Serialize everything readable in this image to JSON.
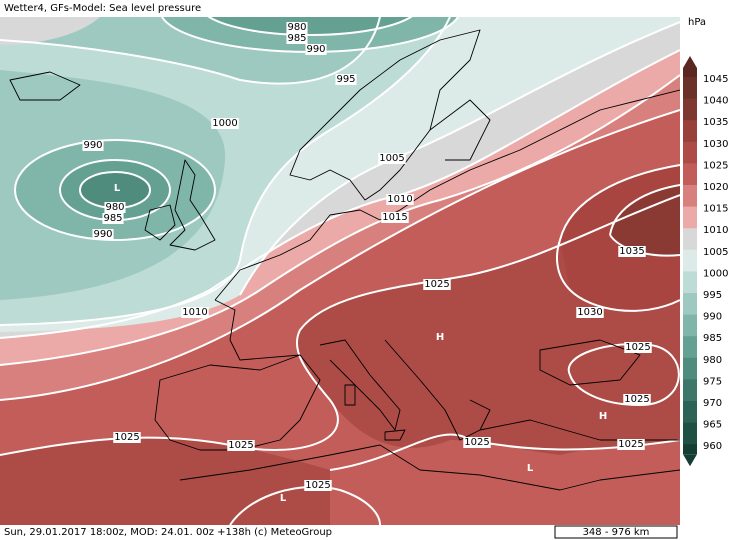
{
  "header": {
    "title": "Wetter4, GFs-Model: Sea level pressure"
  },
  "footer": {
    "caption": "Sun, 29.01.2017 18:00z, MOD: 24.01. 00z +138h (c) MeteoGroup",
    "scale": "348 - 976 km"
  },
  "legend": {
    "unit": "hPa",
    "levels": [
      "1045",
      "1040",
      "1035",
      "1030",
      "1025",
      "1020",
      "1015",
      "1010",
      "1005",
      "1000",
      "995",
      "990",
      "985",
      "980",
      "975",
      "970",
      "965",
      "960"
    ]
  },
  "map": {
    "isobar_labels": [
      "980",
      "985",
      "990",
      "995",
      "1000",
      "990",
      "980",
      "985",
      "990",
      "1005",
      "1010",
      "1015",
      "1010",
      "1025",
      "1035",
      "1030",
      "1025",
      "1025",
      "1025",
      "1025",
      "1025",
      "1025",
      "1025"
    ],
    "pressure_centers": [
      "L",
      "H",
      "H",
      "L",
      "L"
    ]
  }
}
